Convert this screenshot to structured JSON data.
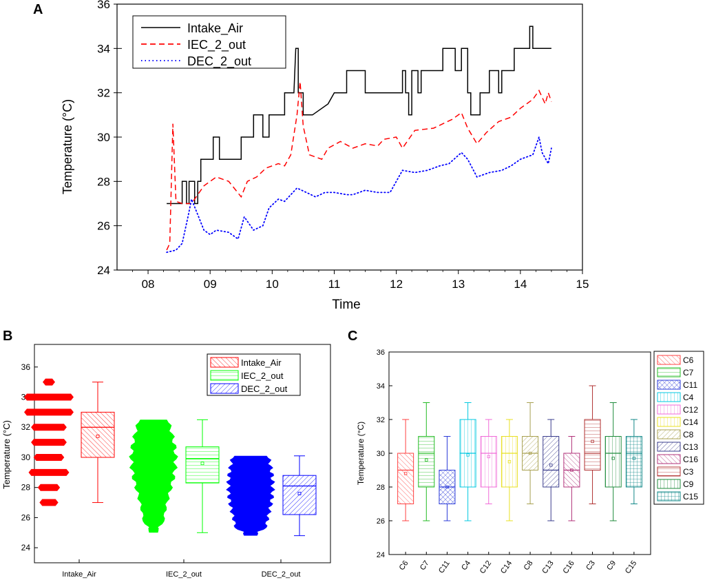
{
  "panel_labels": {
    "a": "A",
    "b": "B",
    "c": "C"
  },
  "chart_data": [
    {
      "type": "line",
      "panel": "A",
      "xlabel": "Time",
      "ylabel": "Temperature (°C)",
      "xlim": [
        7.5,
        15
      ],
      "ylim": [
        24,
        36
      ],
      "xticks": [
        8,
        9,
        10,
        11,
        12,
        13,
        14,
        15
      ],
      "xtick_labels": [
        "08",
        "09",
        "10",
        "11",
        "12",
        "13",
        "14",
        "15"
      ],
      "yticks": [
        24,
        26,
        28,
        30,
        32,
        34,
        36
      ],
      "legend_position": "top-left",
      "series": [
        {
          "name": "Intake_Air",
          "color": "#000000",
          "style": "solid",
          "points": [
            [
              8.3,
              27
            ],
            [
              8.55,
              27
            ],
            [
              8.55,
              28
            ],
            [
              8.62,
              28
            ],
            [
              8.62,
              27
            ],
            [
              8.66,
              27
            ],
            [
              8.66,
              28
            ],
            [
              8.75,
              28
            ],
            [
              8.75,
              27
            ],
            [
              8.8,
              27
            ],
            [
              8.8,
              28
            ],
            [
              8.85,
              28
            ],
            [
              8.85,
              29
            ],
            [
              9.05,
              29
            ],
            [
              9.05,
              30
            ],
            [
              9.15,
              30
            ],
            [
              9.15,
              29
            ],
            [
              9.5,
              29
            ],
            [
              9.5,
              30
            ],
            [
              9.7,
              30
            ],
            [
              9.7,
              31
            ],
            [
              9.85,
              31
            ],
            [
              9.85,
              30
            ],
            [
              9.95,
              30
            ],
            [
              9.95,
              31
            ],
            [
              10.2,
              31
            ],
            [
              10.2,
              32
            ],
            [
              10.35,
              32
            ],
            [
              10.38,
              34
            ],
            [
              10.42,
              34
            ],
            [
              10.42,
              32
            ],
            [
              10.5,
              32
            ],
            [
              10.5,
              31
            ],
            [
              10.65,
              31
            ],
            [
              10.9,
              31.5
            ],
            [
              11.0,
              32
            ],
            [
              11.2,
              32
            ],
            [
              11.2,
              33
            ],
            [
              11.5,
              33
            ],
            [
              11.5,
              32
            ],
            [
              12.1,
              32
            ],
            [
              12.1,
              33
            ],
            [
              12.15,
              33
            ],
            [
              12.15,
              32
            ],
            [
              12.2,
              32
            ],
            [
              12.2,
              31
            ],
            [
              12.25,
              31
            ],
            [
              12.25,
              33
            ],
            [
              12.35,
              33
            ],
            [
              12.35,
              32
            ],
            [
              12.4,
              32
            ],
            [
              12.4,
              33
            ],
            [
              12.75,
              33
            ],
            [
              12.75,
              34
            ],
            [
              12.95,
              34
            ],
            [
              12.95,
              33
            ],
            [
              13.05,
              33
            ],
            [
              13.05,
              34
            ],
            [
              13.15,
              34
            ],
            [
              13.15,
              32
            ],
            [
              13.2,
              32
            ],
            [
              13.2,
              31
            ],
            [
              13.35,
              31
            ],
            [
              13.35,
              32
            ],
            [
              13.5,
              32
            ],
            [
              13.5,
              33
            ],
            [
              13.65,
              33
            ],
            [
              13.65,
              32
            ],
            [
              13.7,
              32
            ],
            [
              13.7,
              33
            ],
            [
              13.9,
              33
            ],
            [
              13.9,
              34
            ],
            [
              14.15,
              34
            ],
            [
              14.15,
              35
            ],
            [
              14.2,
              35
            ],
            [
              14.2,
              34
            ],
            [
              14.5,
              34
            ]
          ]
        },
        {
          "name": "IEC_2_out",
          "color": "#ff0000",
          "style": "dashed",
          "points": [
            [
              8.3,
              24.9
            ],
            [
              8.35,
              25.2
            ],
            [
              8.4,
              30.6
            ],
            [
              8.45,
              27.1
            ],
            [
              8.55,
              27
            ],
            [
              8.7,
              27
            ],
            [
              8.8,
              27.4
            ],
            [
              8.9,
              27.8
            ],
            [
              9.0,
              28
            ],
            [
              9.1,
              28.2
            ],
            [
              9.3,
              28
            ],
            [
              9.5,
              27.3
            ],
            [
              9.6,
              28
            ],
            [
              9.75,
              28.2
            ],
            [
              9.9,
              28.6
            ],
            [
              10.1,
              28.8
            ],
            [
              10.2,
              28.7
            ],
            [
              10.3,
              29.2
            ],
            [
              10.4,
              31
            ],
            [
              10.45,
              32.5
            ],
            [
              10.5,
              30.5
            ],
            [
              10.6,
              29.2
            ],
            [
              10.8,
              29
            ],
            [
              10.9,
              29.5
            ],
            [
              11.1,
              29.8
            ],
            [
              11.3,
              29.5
            ],
            [
              11.5,
              29.7
            ],
            [
              11.7,
              29.6
            ],
            [
              11.8,
              29.9
            ],
            [
              12.0,
              30
            ],
            [
              12.1,
              29.5
            ],
            [
              12.3,
              30.3
            ],
            [
              12.6,
              30.4
            ],
            [
              12.9,
              30.8
            ],
            [
              13.05,
              31.1
            ],
            [
              13.15,
              30.4
            ],
            [
              13.3,
              29.7
            ],
            [
              13.45,
              30.2
            ],
            [
              13.65,
              30.7
            ],
            [
              13.85,
              30.9
            ],
            [
              14.0,
              31.3
            ],
            [
              14.2,
              31.7
            ],
            [
              14.3,
              32.1
            ],
            [
              14.4,
              31.5
            ],
            [
              14.45,
              32
            ],
            [
              14.5,
              31.6
            ]
          ]
        },
        {
          "name": "DEC_2_out",
          "color": "#0000ff",
          "style": "dotted",
          "points": [
            [
              8.3,
              24.8
            ],
            [
              8.45,
              24.9
            ],
            [
              8.55,
              25.2
            ],
            [
              8.65,
              26.5
            ],
            [
              8.7,
              27.2
            ],
            [
              8.8,
              26.5
            ],
            [
              8.9,
              25.8
            ],
            [
              9.0,
              25.6
            ],
            [
              9.1,
              25.8
            ],
            [
              9.3,
              25.7
            ],
            [
              9.45,
              25.4
            ],
            [
              9.55,
              26.4
            ],
            [
              9.7,
              25.8
            ],
            [
              9.85,
              26
            ],
            [
              9.95,
              26.8
            ],
            [
              10.1,
              27.2
            ],
            [
              10.2,
              27.1
            ],
            [
              10.3,
              27.4
            ],
            [
              10.4,
              27.7
            ],
            [
              10.55,
              27.5
            ],
            [
              10.7,
              27.3
            ],
            [
              10.85,
              27.5
            ],
            [
              11.0,
              27.5
            ],
            [
              11.2,
              27.4
            ],
            [
              11.3,
              27.4
            ],
            [
              11.5,
              27.6
            ],
            [
              11.7,
              27.5
            ],
            [
              11.9,
              27.5
            ],
            [
              12.0,
              28
            ],
            [
              12.1,
              28.5
            ],
            [
              12.3,
              28.4
            ],
            [
              12.5,
              28.5
            ],
            [
              12.7,
              28.7
            ],
            [
              12.85,
              28.8
            ],
            [
              13.05,
              29.3
            ],
            [
              13.15,
              29
            ],
            [
              13.3,
              28.2
            ],
            [
              13.5,
              28.4
            ],
            [
              13.7,
              28.5
            ],
            [
              13.85,
              28.7
            ],
            [
              14.0,
              29
            ],
            [
              14.2,
              29.2
            ],
            [
              14.3,
              30
            ],
            [
              14.35,
              29.3
            ],
            [
              14.45,
              28.8
            ],
            [
              14.5,
              29.5
            ]
          ]
        }
      ]
    },
    {
      "type": "box",
      "panel": "B",
      "ylabel": "Temperature (°C)",
      "ylim": [
        23,
        37.5
      ],
      "yticks": [
        24,
        26,
        28,
        30,
        32,
        34,
        36
      ],
      "legend_position": "top-right",
      "groups": [
        {
          "name": "Intake_Air",
          "color": "#ff0000",
          "min": 27,
          "q1": 30,
          "median": 32,
          "q3": 33,
          "max": 35,
          "mean": 31.4,
          "outlier_max": 35,
          "distribution_levels": [
            {
              "value": 27,
              "width": 0.38
            },
            {
              "value": 28,
              "width": 0.45
            },
            {
              "value": 29,
              "width": 0.82
            },
            {
              "value": 30,
              "width": 0.62
            },
            {
              "value": 31,
              "width": 0.72
            },
            {
              "value": 32,
              "width": 0.72
            },
            {
              "value": 33,
              "width": 1.0
            },
            {
              "value": 34,
              "width": 1.0
            },
            {
              "value": 35,
              "width": 0.25
            }
          ]
        },
        {
          "name": "IEC_2_out",
          "color": "#00ff00",
          "min": 25,
          "q1": 28.3,
          "median": 29.9,
          "q3": 30.7,
          "max": 32.5,
          "mean": 29.6
        },
        {
          "name": "DEC_2_out",
          "color": "#0000ff",
          "min": 24.8,
          "q1": 26.2,
          "median": 28.1,
          "q3": 28.8,
          "max": 30.1,
          "mean": 27.6
        }
      ]
    },
    {
      "type": "box",
      "panel": "C",
      "ylabel": "Temperature (°C)",
      "ylim": [
        24,
        36
      ],
      "yticks": [
        24,
        26,
        28,
        30,
        32,
        34,
        36
      ],
      "legend_position": "right",
      "categories": [
        "C6",
        "C7",
        "C11",
        "C4",
        "C12",
        "C14",
        "C8",
        "C13",
        "C16",
        "C3",
        "C9",
        "C15"
      ],
      "boxes": [
        {
          "name": "C6",
          "color": "#ff4040",
          "min": 26,
          "q1": 27,
          "median": 29,
          "q3": 30,
          "max": 32,
          "mean": 28.8
        },
        {
          "name": "C7",
          "color": "#22bb22",
          "min": 26,
          "q1": 28,
          "median": 30,
          "q3": 31,
          "max": 33,
          "mean": 29.6
        },
        {
          "name": "C11",
          "color": "#2a3ad8",
          "min": 26,
          "q1": 27,
          "median": 28,
          "q3": 29,
          "max": 31,
          "mean": 28.0
        },
        {
          "name": "C4",
          "color": "#00c8e0",
          "min": 26,
          "q1": 28,
          "median": 30,
          "q3": 32,
          "max": 33,
          "mean": 29.9
        },
        {
          "name": "C12",
          "color": "#f06ad8",
          "min": 27,
          "q1": 28,
          "median": 30,
          "q3": 31,
          "max": 32,
          "mean": 29.8
        },
        {
          "name": "C14",
          "color": "#e8e020",
          "min": 26,
          "q1": 28,
          "median": 30,
          "q3": 31,
          "max": 32,
          "mean": 29.5
        },
        {
          "name": "C8",
          "color": "#a8a050",
          "min": 27,
          "q1": 29,
          "median": 30,
          "q3": 31,
          "max": 33,
          "mean": 30.0
        },
        {
          "name": "C13",
          "color": "#3a3c8c",
          "min": 26,
          "q1": 28,
          "median": 29,
          "q3": 31,
          "max": 32,
          "mean": 29.3
        },
        {
          "name": "C16",
          "color": "#b03078",
          "min": 26,
          "q1": 28,
          "median": 29,
          "q3": 30,
          "max": 31,
          "mean": 29.0
        },
        {
          "name": "C3",
          "color": "#b03030",
          "min": 27,
          "q1": 29,
          "median": 30,
          "q3": 32,
          "max": 34,
          "mean": 30.7
        },
        {
          "name": "C9",
          "color": "#1c8a3a",
          "min": 26,
          "q1": 28,
          "median": 30,
          "q3": 31,
          "max": 33,
          "mean": 29.7
        },
        {
          "name": "C15",
          "color": "#108888",
          "min": 27,
          "q1": 28,
          "median": 30,
          "q3": 31,
          "max": 32,
          "mean": 29.7
        }
      ]
    }
  ]
}
